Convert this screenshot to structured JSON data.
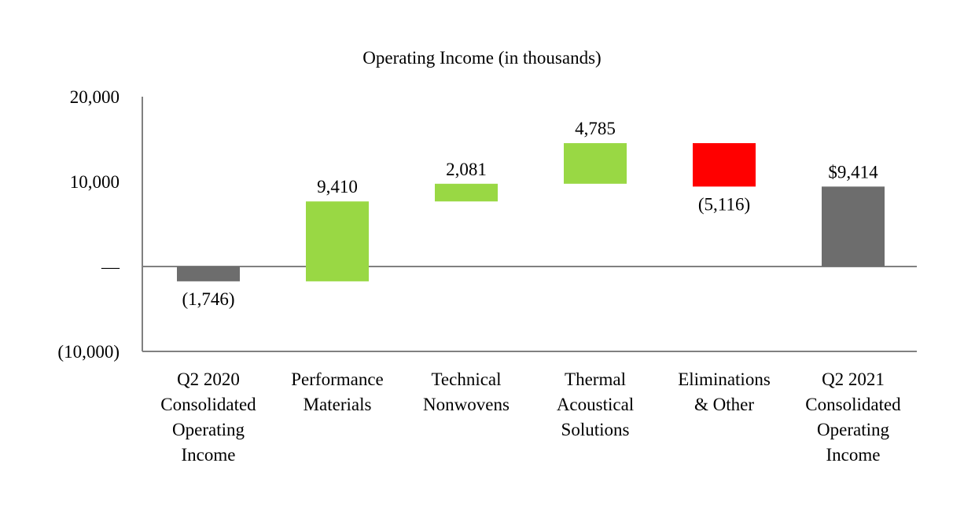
{
  "chart_data": {
    "type": "waterfall",
    "title": "Operating Income (in thousands)",
    "xlabel": "",
    "ylabel": "",
    "ylim": [
      -10000,
      20000
    ],
    "yticks": [
      {
        "value": 20000,
        "label": "20,000"
      },
      {
        "value": 10000,
        "label": "10,000"
      },
      {
        "value": 0,
        "label": "—"
      },
      {
        "value": -10000,
        "label": "(10,000)"
      }
    ],
    "categories": [
      [
        "Q2 2020",
        "Consolidated",
        "Operating",
        "Income"
      ],
      [
        "Performance",
        "Materials"
      ],
      [
        "Technical",
        "Nonwovens"
      ],
      [
        "Thermal",
        "Acoustical",
        "Solutions"
      ],
      [
        "Eliminations",
        "& Other"
      ],
      [
        "Q2 2021",
        "Consolidated",
        "Operating",
        "Income"
      ]
    ],
    "bars": [
      {
        "kind": "total",
        "value": -1746,
        "label": "(1,746)",
        "label_pos": "below"
      },
      {
        "kind": "delta",
        "value": 9410,
        "label": "9,410",
        "label_pos": "above"
      },
      {
        "kind": "delta",
        "value": 2081,
        "label": "2,081",
        "label_pos": "above"
      },
      {
        "kind": "delta",
        "value": 4785,
        "label": "4,785",
        "label_pos": "above"
      },
      {
        "kind": "delta",
        "value": -5116,
        "label": "(5,116)",
        "label_pos": "below"
      },
      {
        "kind": "total",
        "value": 9414,
        "label": "$9,414",
        "label_pos": "above"
      }
    ],
    "colors": {
      "total": "#6d6d6d",
      "increase": "#99d844",
      "decrease": "#ff0000",
      "axis": "#808080"
    }
  }
}
